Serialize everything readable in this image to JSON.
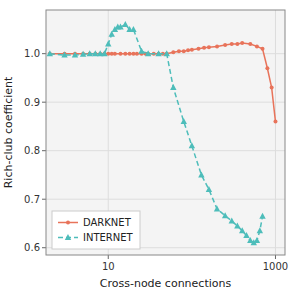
{
  "chart_data": {
    "type": "line",
    "xlabel": "Cross-node connections",
    "ylabel": "Rich-club coefficient",
    "log": "x",
    "xlim": [
      1.8,
      1300
    ],
    "ylim": [
      0.585,
      1.09
    ],
    "xticks": [
      10,
      1000
    ],
    "yticks": [
      0.6,
      0.7,
      0.8,
      0.9,
      1.0
    ],
    "grid": true,
    "legend": "lower left",
    "series": [
      {
        "name": "DARKNET",
        "color": "#E8735A",
        "marker": "circle",
        "line_style": "solid",
        "x": [
          2,
          3,
          4,
          5,
          6,
          7,
          8,
          9,
          10,
          11,
          12,
          14,
          16,
          18,
          20,
          22,
          25,
          28,
          30,
          35,
          40,
          45,
          50,
          60,
          70,
          80,
          90,
          100,
          120,
          140,
          160,
          200,
          250,
          300,
          350,
          400,
          500,
          600,
          700,
          800,
          900,
          1000
        ],
        "values": [
          1.0,
          1.0,
          1.0,
          1.0,
          1.0,
          1.0,
          1.0,
          1.0,
          1.0,
          1.0,
          1.0,
          1.0,
          1.0,
          1.0,
          1.0,
          1.0,
          1.0,
          1.0,
          1.0,
          1.0,
          1.0,
          1.0,
          1.0,
          1.003,
          1.005,
          1.005,
          1.007,
          1.008,
          1.01,
          1.012,
          1.013,
          1.015,
          1.018,
          1.02,
          1.02,
          1.022,
          1.02,
          1.015,
          1.01,
          0.97,
          0.93,
          0.86
        ]
      },
      {
        "name": "INTERNET",
        "color": "#4DBDBA",
        "marker": "triangle",
        "line_style": "dashed",
        "x": [
          2,
          3,
          4,
          5,
          6,
          7,
          8,
          9,
          10,
          11,
          12,
          13,
          14,
          16,
          18,
          20,
          25,
          30,
          40,
          50,
          60,
          80,
          100,
          130,
          160,
          200,
          250,
          300,
          350,
          400,
          450,
          500,
          550,
          600,
          650,
          700
        ],
        "values": [
          1.0,
          0.997,
          0.997,
          0.999,
          1.0,
          1.0,
          1.0,
          1.0,
          1.02,
          1.04,
          1.05,
          1.055,
          1.055,
          1.06,
          1.05,
          1.05,
          1.005,
          1.0,
          1.0,
          1.0,
          0.93,
          0.86,
          0.81,
          0.75,
          0.72,
          0.68,
          0.666,
          0.655,
          0.645,
          0.635,
          0.625,
          0.615,
          0.61,
          0.615,
          0.635,
          0.665
        ]
      }
    ]
  }
}
